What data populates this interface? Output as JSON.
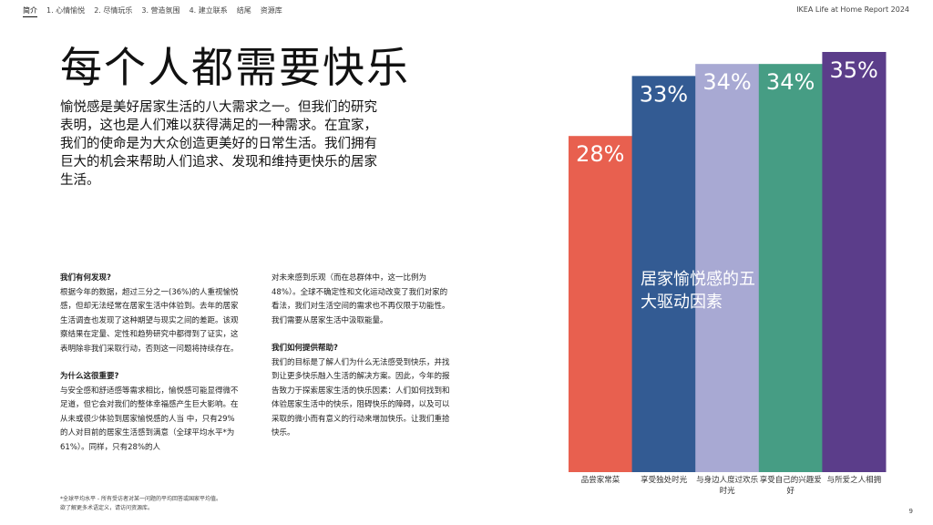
{
  "nav": {
    "items": [
      "简介",
      "1. 心情愉悦",
      "2. 尽情玩乐",
      "3. 营造氛围",
      "4. 建立联系",
      "结尾",
      "资源库"
    ],
    "active": 0
  },
  "report_title": "IKEA Life at Home Report 2024",
  "title": "每个人都需要快乐",
  "lead": "愉悦感是美好居家生活的八大需求之一。但我们的研究表明，这也是人们难以获得满足的一种需求。在宜家，我们的使命是为大众创造更美好的日常生活。我们拥有巨大的机会来帮助人们追求、发现和维持更快乐的居家生活。",
  "sections": {
    "found_heading": "我们有何发现?",
    "found_body": "根据今年的数据，超过三分之一(36%)的人重视愉悦感，但却无法经常在居家生活中体验到。去年的居家生活调查也发现了这种期望与现实之间的差距。该观察结果在定量、定性和趋势研究中都得到了证实，这表明除非我们采取行动，否则这一问题将持续存在。",
    "why_heading": "为什么这很重要?",
    "why_body": "与安全感和舒适感等需求相比，愉悦感可能显得微不足道，但它会对我们的整体幸福感产生巨大影响。在从未或很少体验到居家愉悦感的人当 中，只有29%的人对目前的居家生活感到满意（全球平均水平*为61%）。同样，只有28%的人",
    "cont_body": "对未来感到乐观（而在总群体中，这一比例为48%）。全球不确定性和文化运动改变了我们对家的看法，我们对生活空间的需求也不再仅限于功能性。我们需要从居家生活中汲取能量。",
    "help_heading": "我们如何提供帮助?",
    "help_body": "我们的目标是了解人们为什么无法感受到快乐，并找到让更多快乐融入生活的解决方案。因此，今年的报告致力于探索居家生活的快乐因素：人们如何找到和体验居家生活中的快乐，阻碍快乐的障碍，以及可以采取的微小而有意义的行动来增加快乐。让我们重拾快乐。"
  },
  "footnote": "*全球平均水平 - 所有受访者对某一问题的平均回答或国家平均值。欲了解更多术语定义，请访问资源库。",
  "page_number": "9",
  "chart_data": {
    "type": "bar",
    "title": "居家愉悦感的五大驱动因素",
    "categories": [
      "品尝家常菜",
      "享受独处时光",
      "与身边人度过欢乐时光",
      "享受自己的兴趣爱好",
      "与所爱之人相拥"
    ],
    "values": [
      28,
      33,
      34,
      34,
      35
    ],
    "value_labels": [
      "28%",
      "33%",
      "34%",
      "34%",
      "35%"
    ],
    "colors": [
      "#e8604f",
      "#335b93",
      "#a8a9d3",
      "#469d84",
      "#5b3d8a"
    ],
    "ylim": [
      0,
      35
    ],
    "grid": false,
    "legend": "none"
  }
}
